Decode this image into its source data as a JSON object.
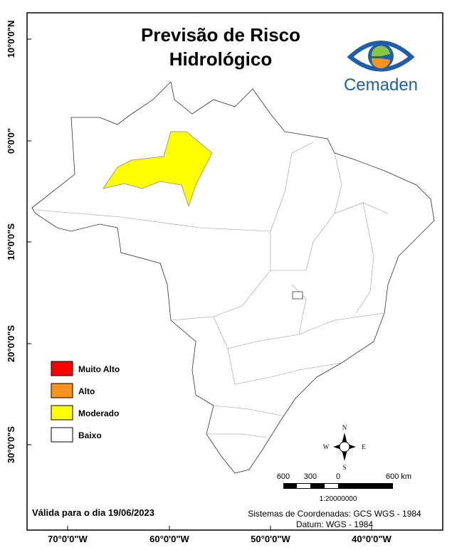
{
  "title": {
    "lines": [
      "Previsão de Risco",
      "Hidrológico"
    ]
  },
  "logo": {
    "text": "Cemaden"
  },
  "legend": {
    "items": [
      {
        "label": "Muito Alto",
        "color": "#ff0000"
      },
      {
        "label": "Alto",
        "color": "#f7941d"
      },
      {
        "label": "Moderado",
        "color": "#ffff00"
      },
      {
        "label": "Baixo",
        "color": "#ffffff"
      }
    ]
  },
  "axes": {
    "latitude": [
      "10°0'0\"N",
      "0°0'0\"",
      "10°0'0\"S",
      "20°0'0\"S",
      "30°0'0\"S"
    ],
    "longitude": [
      "70°0'0\"W",
      "60°0'0\"W",
      "50°0'0\"W",
      "40°0'0\"W"
    ]
  },
  "compass": {
    "n": "N",
    "s": "S",
    "e": "E",
    "w": "W"
  },
  "scale_bar": {
    "labels": [
      "600",
      "300",
      "0",
      "600 km"
    ],
    "ratio": "1:20000000"
  },
  "footer": {
    "valid": "Válida para o dia 19/06/2023",
    "coordinates": "Sistemas de Coordenadas: GCS WGS - 1984",
    "datum": "Datum: WGS - 1984"
  }
}
